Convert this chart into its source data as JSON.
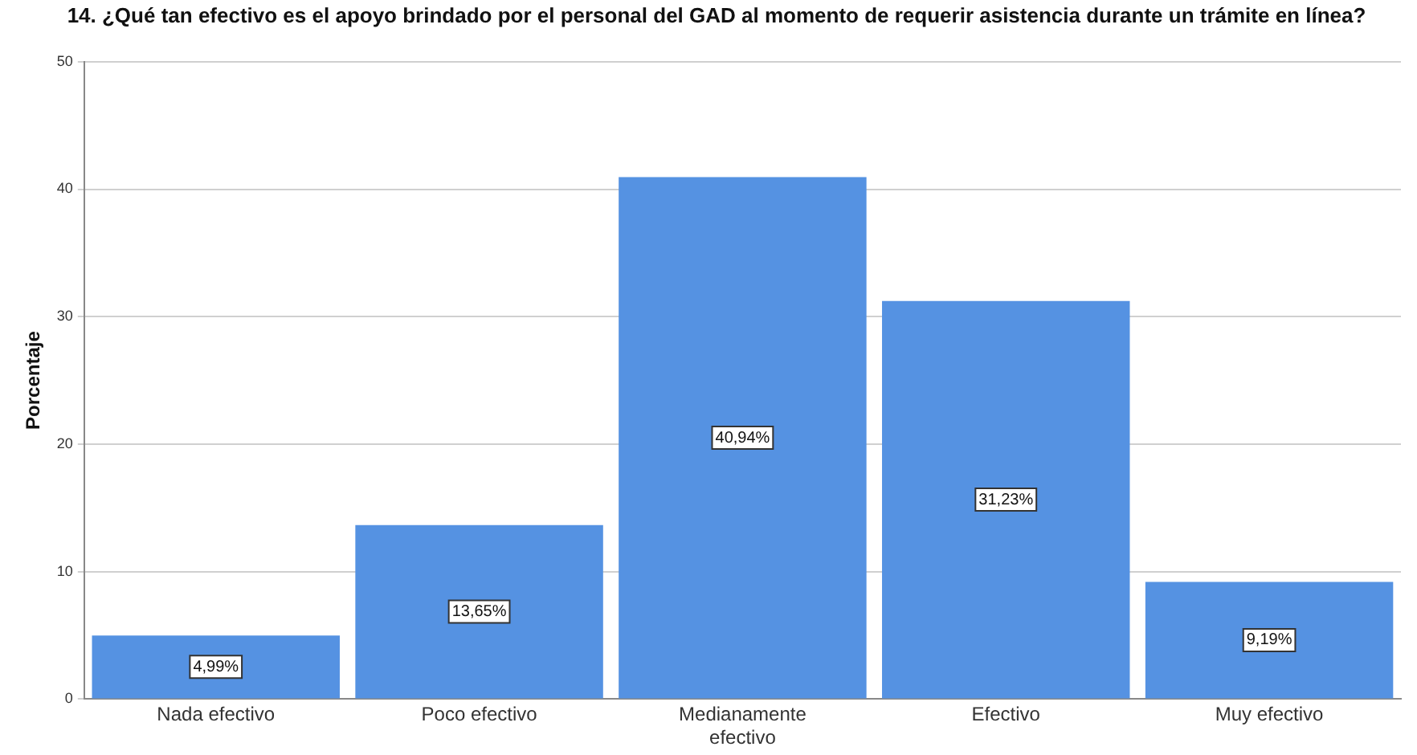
{
  "chart_data": {
    "type": "bar",
    "title": "14. ¿Qué tan efectivo es el apoyo brindado por el personal del GAD al momento de requerir asistencia durante un trámite en línea?",
    "ylabel": "Porcentaje",
    "categories": [
      "Nada efectivo",
      "Poco efectivo",
      "Medianamente efectivo",
      "Efectivo",
      "Muy efectivo"
    ],
    "values": [
      4.99,
      13.65,
      40.94,
      31.23,
      9.19
    ],
    "value_labels": [
      "4,99%",
      "13,65%",
      "40,94%",
      "31,23%",
      "9,19%"
    ],
    "color": "#5592e2",
    "ylim": [
      0,
      50
    ],
    "yticks": [
      0,
      10,
      20,
      30,
      40,
      50
    ],
    "grid": "y",
    "legend": false
  }
}
